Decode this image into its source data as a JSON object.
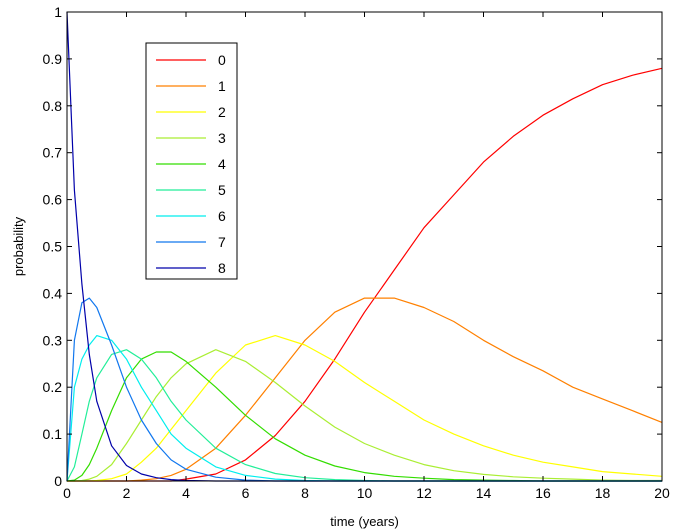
{
  "chart_data": {
    "type": "line",
    "title": "",
    "xlabel": "time (years)",
    "ylabel": "probability",
    "xlim": [
      0,
      20
    ],
    "ylim": [
      0,
      1
    ],
    "x_ticks": [
      "0",
      "2",
      "4",
      "6",
      "8",
      "10",
      "12",
      "14",
      "16",
      "18",
      "20"
    ],
    "y_ticks": [
      "0",
      "0.1",
      "0.2",
      "0.3",
      "0.4",
      "0.5",
      "0.6",
      "0.7",
      "0.8",
      "0.9",
      "1"
    ],
    "grid": false,
    "legend_position": "top-left",
    "x": [
      0,
      0.25,
      0.5,
      0.75,
      1,
      1.5,
      2,
      2.5,
      3,
      3.5,
      4,
      5,
      6,
      7,
      8,
      9,
      10,
      11,
      12,
      13,
      14,
      15,
      16,
      17,
      18,
      19,
      20
    ],
    "series": [
      {
        "name": "0",
        "color": "#ff0000",
        "values": [
          0,
          0,
          0,
          0,
          0,
          0,
          0,
          0,
          0,
          0,
          0.004,
          0.015,
          0.045,
          0.097,
          0.17,
          0.26,
          0.36,
          0.45,
          0.54,
          0.61,
          0.68,
          0.735,
          0.78,
          0.815,
          0.845,
          0.865,
          0.88
        ]
      },
      {
        "name": "1",
        "color": "#ff8000",
        "values": [
          0,
          0,
          0,
          0,
          0,
          0,
          0,
          0.002,
          0.005,
          0.012,
          0.025,
          0.07,
          0.14,
          0.22,
          0.3,
          0.36,
          0.39,
          0.39,
          0.37,
          0.34,
          0.3,
          0.265,
          0.235,
          0.2,
          0.175,
          0.15,
          0.125
        ]
      },
      {
        "name": "2",
        "color": "#ffff00",
        "values": [
          0,
          0,
          0,
          0,
          0.001,
          0.005,
          0.015,
          0.04,
          0.07,
          0.11,
          0.15,
          0.23,
          0.29,
          0.31,
          0.29,
          0.255,
          0.21,
          0.17,
          0.13,
          0.1,
          0.075,
          0.055,
          0.04,
          0.03,
          0.02,
          0.015,
          0.01
        ]
      },
      {
        "name": "3",
        "color": "#aaee33",
        "values": [
          0,
          0,
          0.001,
          0.004,
          0.01,
          0.035,
          0.08,
          0.13,
          0.18,
          0.22,
          0.25,
          0.28,
          0.255,
          0.21,
          0.16,
          0.115,
          0.08,
          0.055,
          0.035,
          0.022,
          0.014,
          0.009,
          0.006,
          0.004,
          0.002,
          0.001,
          0.001
        ]
      },
      {
        "name": "4",
        "color": "#33dd00",
        "values": [
          0,
          0.002,
          0.012,
          0.035,
          0.07,
          0.15,
          0.22,
          0.26,
          0.275,
          0.275,
          0.255,
          0.2,
          0.14,
          0.09,
          0.055,
          0.032,
          0.018,
          0.01,
          0.006,
          0.003,
          0.002,
          0.001,
          0,
          0,
          0,
          0,
          0
        ]
      },
      {
        "name": "5",
        "color": "#22ee99",
        "values": [
          0,
          0.03,
          0.1,
          0.17,
          0.22,
          0.27,
          0.28,
          0.26,
          0.22,
          0.17,
          0.13,
          0.07,
          0.035,
          0.016,
          0.007,
          0.003,
          0.001,
          0,
          0,
          0,
          0,
          0,
          0,
          0,
          0,
          0,
          0
        ]
      },
      {
        "name": "6",
        "color": "#00eeee",
        "values": [
          0,
          0.2,
          0.26,
          0.29,
          0.31,
          0.3,
          0.26,
          0.2,
          0.15,
          0.1,
          0.07,
          0.03,
          0.012,
          0.004,
          0.001,
          0,
          0,
          0,
          0,
          0,
          0,
          0,
          0,
          0,
          0,
          0,
          0
        ]
      },
      {
        "name": "7",
        "color": "#1177ee",
        "values": [
          0,
          0.3,
          0.38,
          0.39,
          0.37,
          0.29,
          0.2,
          0.13,
          0.08,
          0.045,
          0.025,
          0.008,
          0.002,
          0,
          0,
          0,
          0,
          0,
          0,
          0,
          0,
          0,
          0,
          0,
          0,
          0,
          0
        ]
      },
      {
        "name": "8",
        "color": "#0000aa",
        "values": [
          1,
          0.62,
          0.42,
          0.27,
          0.17,
          0.075,
          0.033,
          0.015,
          0.007,
          0.003,
          0.001,
          0,
          0,
          0,
          0,
          0,
          0,
          0,
          0,
          0,
          0,
          0,
          0,
          0,
          0,
          0,
          0
        ]
      }
    ]
  }
}
